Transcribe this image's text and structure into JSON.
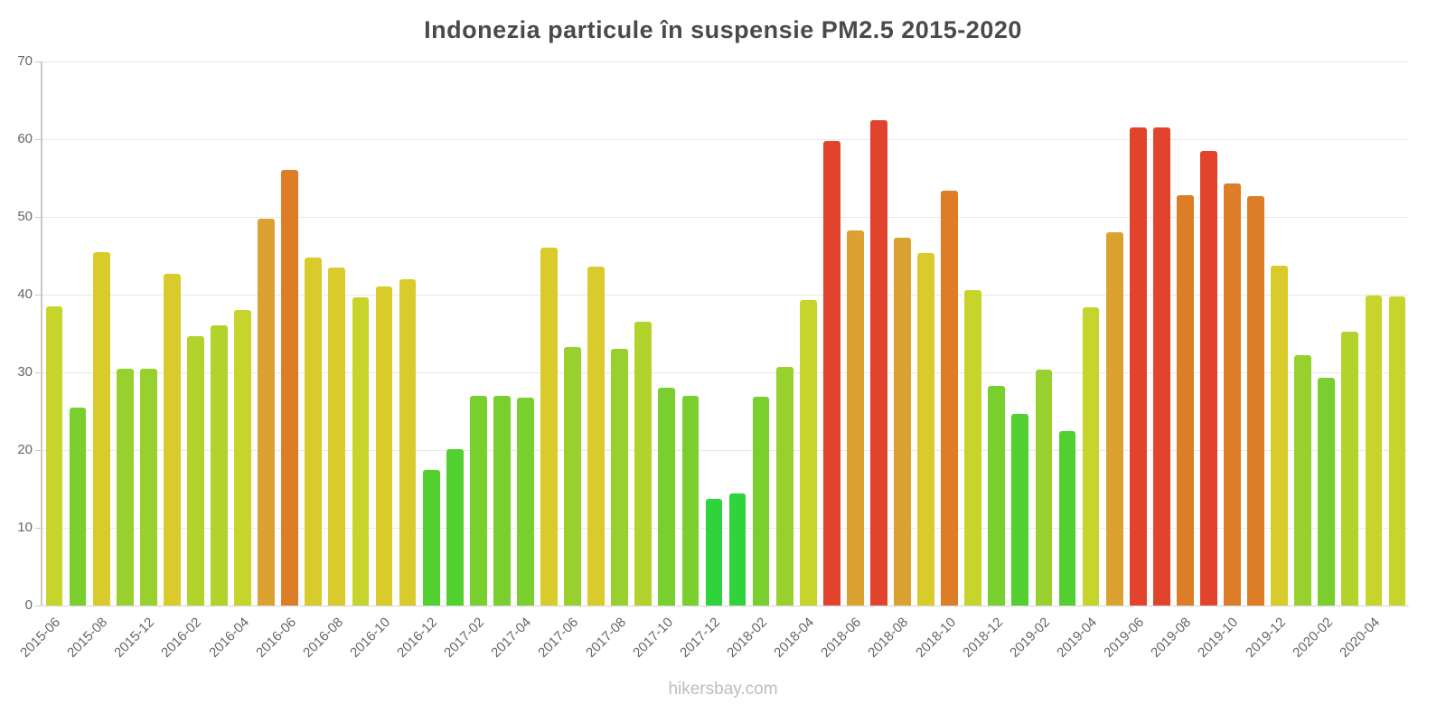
{
  "title": "Indonezia particule în suspensie PM2.5 2015-2020",
  "footer": "hikersbay.com",
  "chart_data": {
    "type": "bar",
    "title": "Indonezia particule în suspensie PM2.5 2015-2020",
    "xlabel": "",
    "ylabel": "",
    "ylim": [
      0,
      70
    ],
    "y_ticks": [
      0,
      10,
      20,
      30,
      40,
      50,
      60,
      70
    ],
    "grid": "horizontal",
    "legend": "none",
    "source": "hikersbay.com",
    "tick_label_every_n_bars": 2,
    "x_tick_labels": [
      "2015-06",
      "2015-08",
      "2015-12",
      "2016-02",
      "2016-04",
      "2016-06",
      "2016-08",
      "2016-10",
      "2016-12",
      "2017-02",
      "2017-04",
      "2017-06",
      "2017-08",
      "2017-10",
      "2017-12",
      "2018-02",
      "2018-04",
      "2018-06",
      "2018-08",
      "2018-10",
      "2018-12",
      "2019-02",
      "2019-04",
      "2019-06",
      "2019-08",
      "2019-10",
      "2019-12",
      "2020-02",
      "2020-04"
    ],
    "values": [
      38.5,
      25.5,
      45.5,
      30.5,
      30.5,
      42.7,
      34.7,
      36.0,
      38.0,
      49.8,
      56.0,
      44.8,
      43.5,
      39.7,
      41.0,
      42.0,
      17.5,
      20.1,
      27.0,
      27.0,
      26.8,
      46.0,
      33.2,
      43.6,
      33.0,
      36.5,
      28.0,
      27.0,
      13.7,
      14.4,
      26.9,
      30.7,
      39.3,
      59.8,
      48.2,
      62.5,
      47.3,
      45.3,
      53.4,
      40.6,
      28.2,
      24.7,
      30.4,
      22.4,
      38.4,
      48.0,
      61.5,
      61.5,
      52.8,
      58.5,
      54.3,
      52.7,
      43.7,
      32.2,
      29.3,
      35.2,
      39.9,
      39.8
    ],
    "color_scale": [
      {
        "max": 15,
        "color": "#2fd33c"
      },
      {
        "max": 25,
        "color": "#51d02f"
      },
      {
        "max": 30,
        "color": "#79cf2d"
      },
      {
        "max": 34,
        "color": "#98d02d"
      },
      {
        "max": 38,
        "color": "#b2d22c"
      },
      {
        "max": 41,
        "color": "#c6d42c"
      },
      {
        "max": 47,
        "color": "#d9cb2b"
      },
      {
        "max": 51,
        "color": "#dba232"
      },
      {
        "max": 57,
        "color": "#dd7d28"
      },
      {
        "max": 999,
        "color": "#e1432c"
      }
    ]
  }
}
